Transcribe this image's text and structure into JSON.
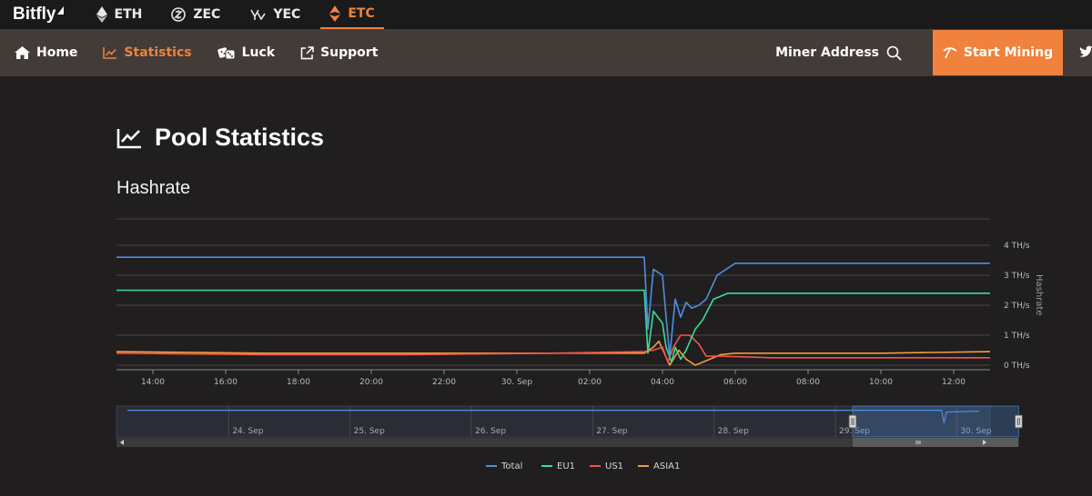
{
  "brand": {
    "name": "Bitfly"
  },
  "coins": [
    {
      "label": "ETH",
      "icon": "ethereum-icon",
      "active": false
    },
    {
      "label": "ZEC",
      "icon": "zcash-icon",
      "active": false
    },
    {
      "label": "YEC",
      "icon": "ycash-icon",
      "active": false
    },
    {
      "label": "ETC",
      "icon": "ethereum-classic-icon",
      "active": true
    }
  ],
  "nav": {
    "items": [
      {
        "label": "Home",
        "icon": "home-icon",
        "active": false
      },
      {
        "label": "Statistics",
        "icon": "chart-line-icon",
        "active": true
      },
      {
        "label": "Luck",
        "icon": "dice-icon",
        "active": false
      },
      {
        "label": "Support",
        "icon": "external-link-icon",
        "active": false
      }
    ],
    "miner_address_label": "Miner Address",
    "start_mining_label": "Start Mining"
  },
  "page": {
    "title": "Pool Statistics",
    "section": "Hashrate"
  },
  "colors": {
    "accent": "#f0823d",
    "total": "#4e8fe0",
    "eu1": "#3ddc97",
    "us1": "#f0564a",
    "asia1": "#f39b3f"
  },
  "chart_data": {
    "type": "line",
    "ylabel": "Hashrate",
    "y_unit": "TH/s",
    "ylim": [
      0,
      4
    ],
    "y_ticks": [
      "0 TH/s",
      "1 TH/s",
      "2 TH/s",
      "3 TH/s",
      "4 TH/s"
    ],
    "x_ticks": [
      "14:00",
      "16:00",
      "18:00",
      "20:00",
      "22:00",
      "30. Sep",
      "02:00",
      "04:00",
      "06:00",
      "08:00",
      "10:00",
      "12:00"
    ],
    "x_hours": [
      -11,
      -9,
      -7,
      -5,
      -3,
      -1,
      1,
      3,
      5,
      7,
      9,
      11
    ],
    "x_range_hours": [
      -12,
      12
    ],
    "legend_position": "bottom",
    "series": [
      {
        "name": "Total",
        "x": [
          -12,
          -8,
          -4,
          0,
          1.5,
          2.5,
          2.6,
          2.75,
          3.0,
          3.1,
          3.2,
          3.35,
          3.5,
          3.65,
          3.8,
          4.0,
          4.2,
          4.5,
          5.0,
          6.0,
          8.0,
          10.0,
          12.0
        ],
        "y": [
          3.6,
          3.6,
          3.6,
          3.6,
          3.6,
          3.6,
          1.2,
          3.2,
          3.0,
          1.6,
          0.3,
          2.2,
          1.6,
          2.1,
          1.9,
          2.0,
          2.2,
          3.0,
          3.4,
          3.4,
          3.4,
          3.4,
          3.4
        ]
      },
      {
        "name": "EU1",
        "x": [
          -12,
          -8,
          -4,
          0,
          1.5,
          2.5,
          2.6,
          2.75,
          3.0,
          3.1,
          3.25,
          3.35,
          3.5,
          3.65,
          3.9,
          4.1,
          4.4,
          4.8,
          5.5,
          7.0,
          9.0,
          12.0
        ],
        "y": [
          2.5,
          2.5,
          2.5,
          2.5,
          2.5,
          2.5,
          0.4,
          1.8,
          1.4,
          0.6,
          0.1,
          0.6,
          0.2,
          0.5,
          1.2,
          1.5,
          2.2,
          2.4,
          2.4,
          2.4,
          2.4,
          2.4
        ]
      },
      {
        "name": "US1",
        "x": [
          -12,
          -8,
          -4,
          0,
          2.5,
          2.75,
          3.0,
          3.15,
          3.3,
          3.5,
          3.75,
          4.0,
          4.2,
          4.6,
          6.0,
          9.0,
          12.0
        ],
        "y": [
          0.4,
          0.35,
          0.35,
          0.4,
          0.45,
          0.5,
          0.6,
          0.1,
          0.6,
          1.0,
          1.0,
          0.7,
          0.3,
          0.3,
          0.25,
          0.25,
          0.25
        ]
      },
      {
        "name": "ASIA1",
        "x": [
          -12,
          -8,
          -4,
          0,
          2.5,
          2.75,
          2.9,
          3.2,
          3.45,
          3.65,
          3.9,
          4.2,
          4.6,
          5.0,
          6.0,
          9.0,
          12.0
        ],
        "y": [
          0.45,
          0.4,
          0.4,
          0.4,
          0.4,
          0.6,
          0.8,
          0.0,
          0.5,
          0.2,
          0.0,
          0.15,
          0.35,
          0.4,
          0.4,
          0.4,
          0.45
        ]
      }
    ],
    "navigator": {
      "x_ticks": [
        "24. Sep",
        "25. Sep",
        "26. Sep",
        "27. Sep",
        "28. Sep",
        "29. Sep",
        "30. Sep"
      ],
      "x_days": [
        -5.5,
        -4.5,
        -3.5,
        -2.5,
        -1.5,
        -0.5,
        0.5
      ],
      "x_range_days": [
        -6.5,
        0.7
      ],
      "selected_range_days": [
        -0.5,
        0.5
      ]
    }
  }
}
